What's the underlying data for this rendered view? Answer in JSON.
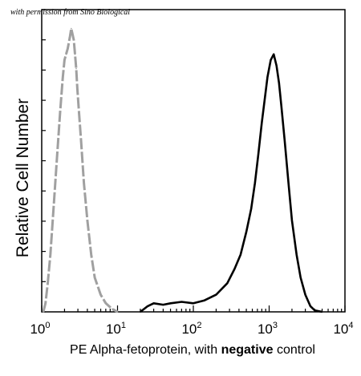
{
  "watermark": "with permission from Sino Biological",
  "chart_data": {
    "type": "area",
    "xlabel_parts": [
      "PE  Alpha-fetoprotein,  with ",
      "negative",
      " control"
    ],
    "ylabel": "Relative Cell Number",
    "x_scale": "log",
    "xlim": [
      1,
      10000
    ],
    "ylim": [
      0,
      1
    ],
    "grid": false,
    "x_ticks": [
      {
        "base": "10",
        "exp": "0",
        "value": 1
      },
      {
        "base": "10",
        "exp": "1",
        "value": 10
      },
      {
        "base": "10",
        "exp": "2",
        "value": 100
      },
      {
        "base": "10",
        "exp": "3",
        "value": 1000
      },
      {
        "base": "10",
        "exp": "4",
        "value": 10000
      }
    ],
    "y_minor_ticks": 10,
    "colors": {
      "negative_control": "#a0a0a0",
      "sample": "#000000"
    },
    "series": [
      {
        "style": "dashed-gray",
        "x": [
          1.05,
          1.12,
          1.2,
          1.3,
          1.45,
          1.6,
          1.75,
          1.9,
          2.0,
          2.1,
          2.2,
          2.35,
          2.45,
          2.55,
          2.65,
          2.75,
          2.85,
          2.95,
          3.1,
          3.3,
          3.6,
          4.0,
          4.5,
          5.0,
          6.0,
          7.0,
          8.5,
          10.0
        ],
        "y": [
          0.0,
          0.03,
          0.1,
          0.2,
          0.38,
          0.55,
          0.7,
          0.82,
          0.88,
          0.9,
          0.92,
          0.96,
          0.99,
          0.97,
          0.95,
          0.9,
          0.85,
          0.78,
          0.7,
          0.6,
          0.45,
          0.32,
          0.2,
          0.12,
          0.06,
          0.03,
          0.01,
          0.0
        ]
      },
      {
        "style": "solid-black",
        "x": [
          20,
          25,
          30,
          40,
          50,
          70,
          100,
          140,
          200,
          280,
          350,
          420,
          500,
          580,
          650,
          720,
          800,
          880,
          950,
          1050,
          1150,
          1250,
          1350,
          1450,
          1600,
          1800,
          2000,
          2300,
          2600,
          3000,
          3500,
          4000,
          5000
        ],
        "y": [
          0.0,
          0.02,
          0.03,
          0.025,
          0.03,
          0.035,
          0.03,
          0.04,
          0.06,
          0.1,
          0.15,
          0.2,
          0.28,
          0.36,
          0.45,
          0.55,
          0.66,
          0.75,
          0.82,
          0.88,
          0.9,
          0.86,
          0.8,
          0.72,
          0.6,
          0.45,
          0.32,
          0.2,
          0.12,
          0.06,
          0.02,
          0.005,
          0.0
        ]
      }
    ]
  }
}
